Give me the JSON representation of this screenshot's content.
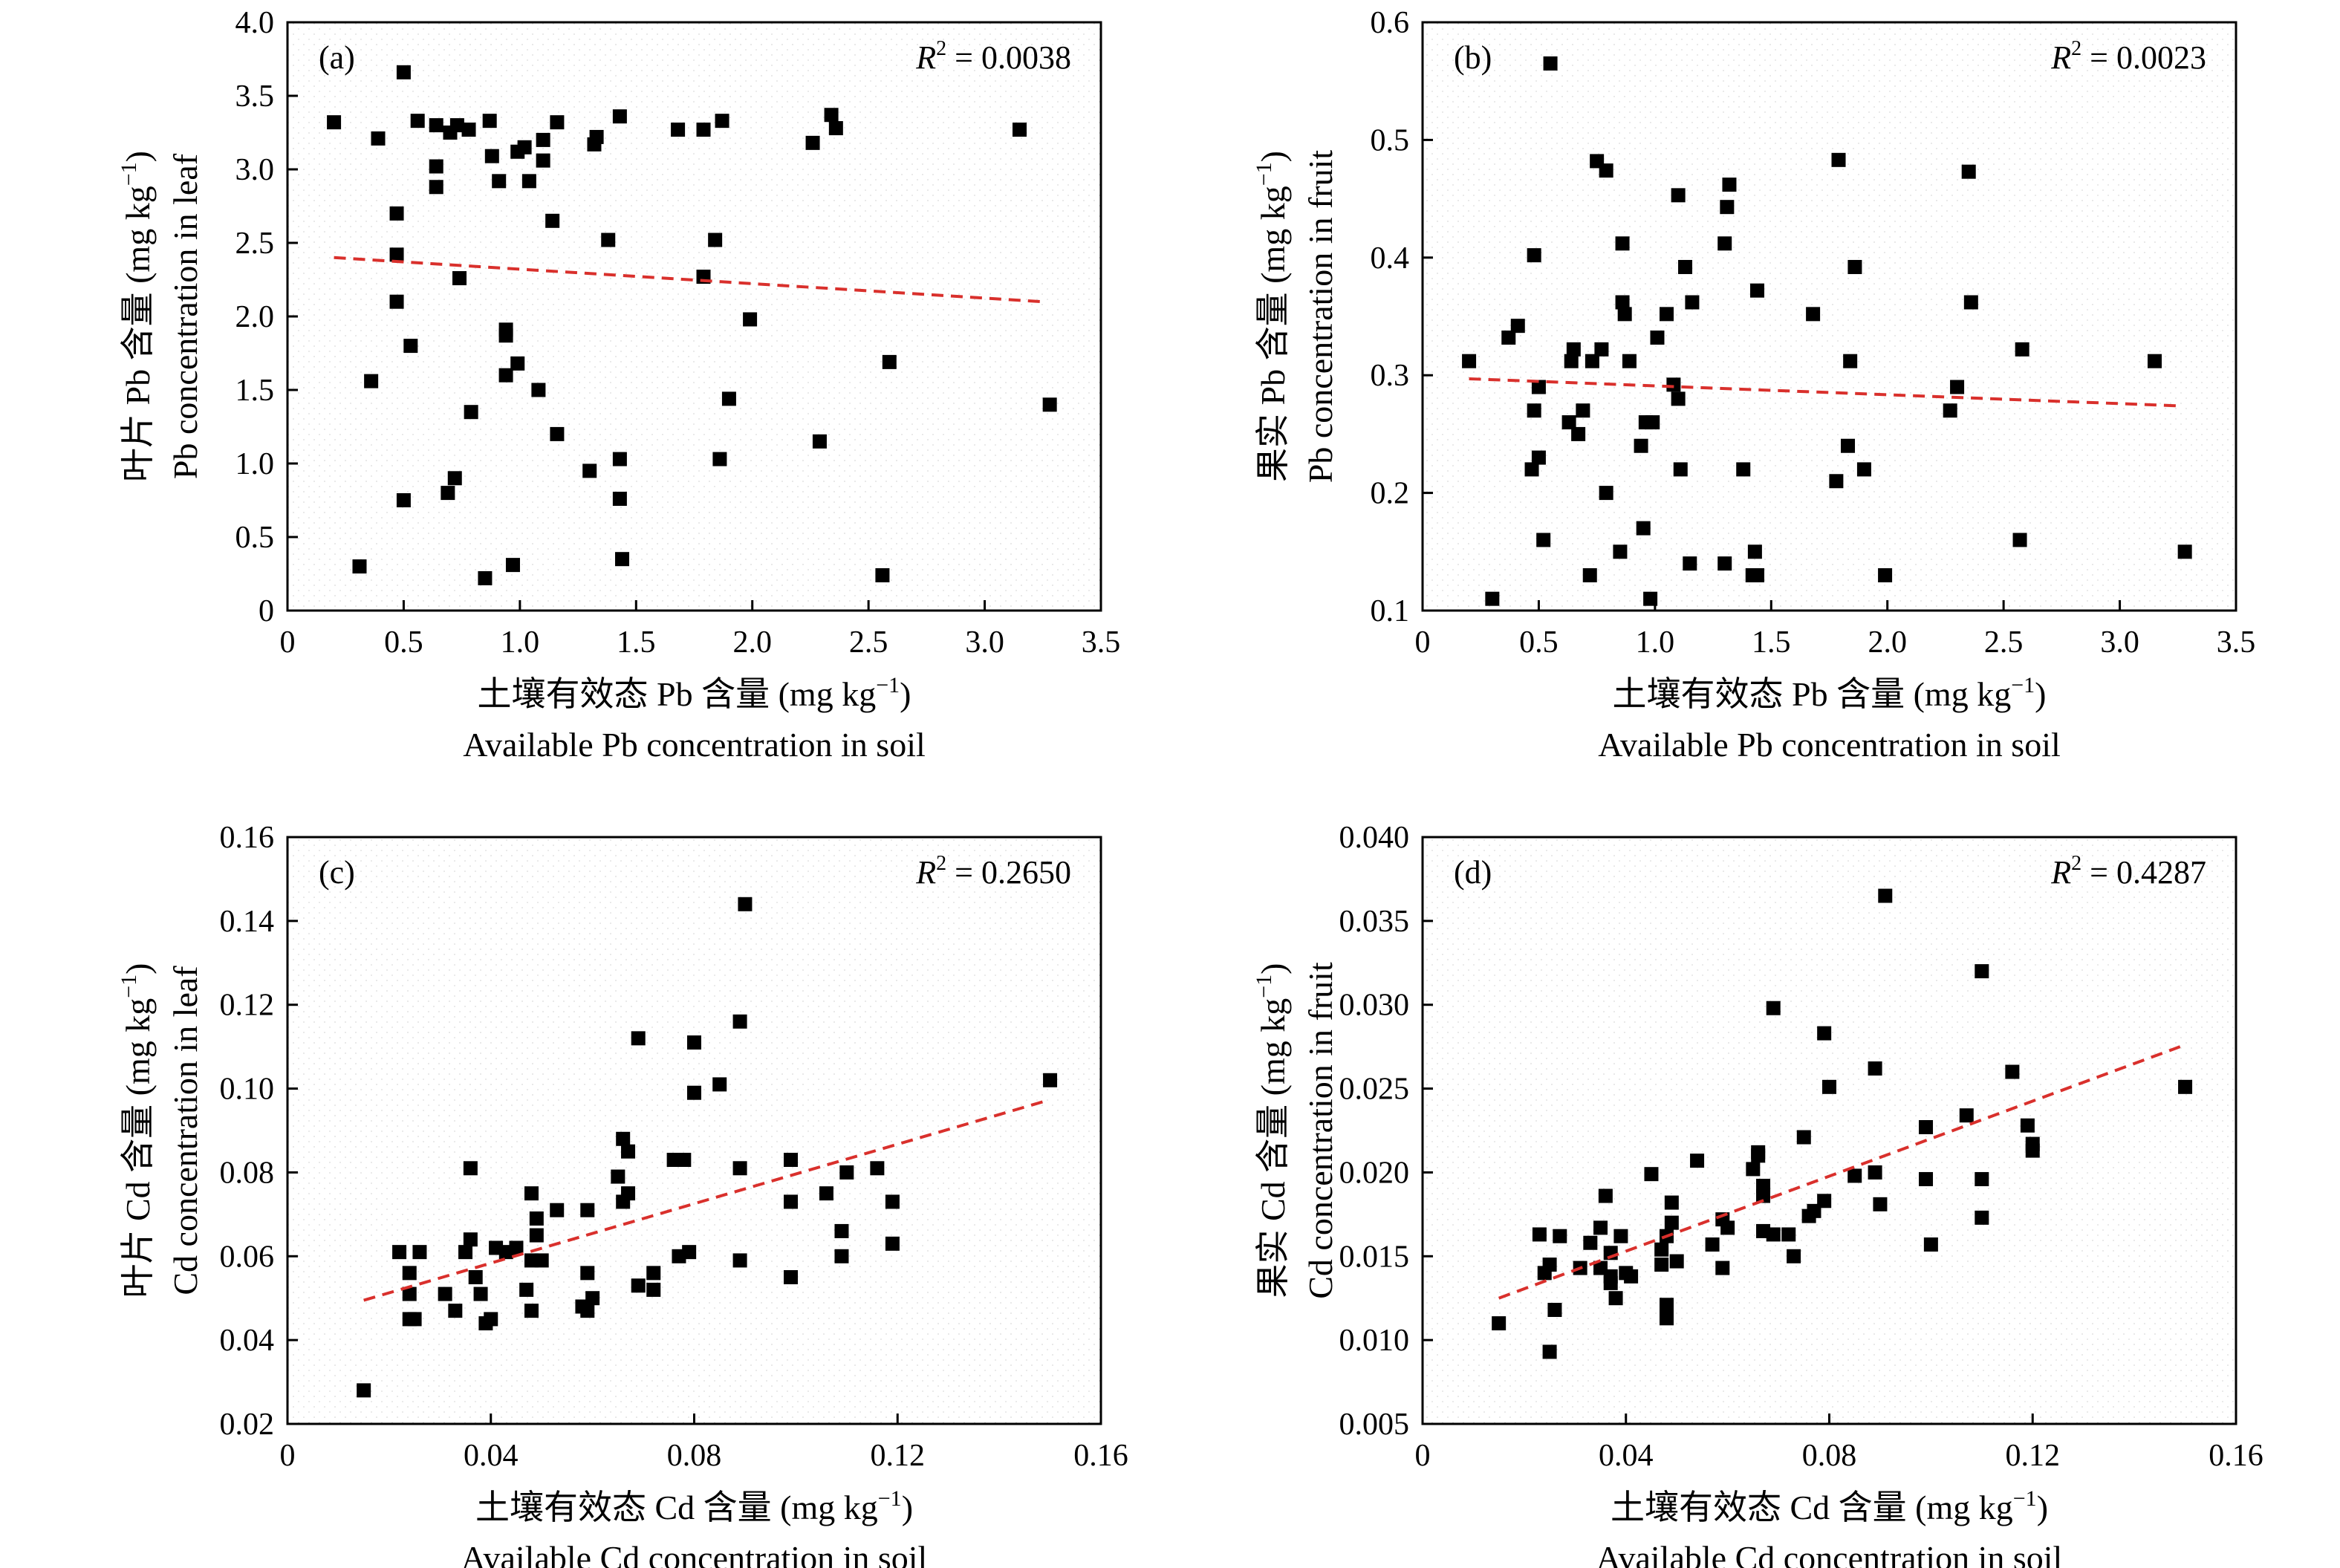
{
  "chart_data": [
    {
      "type": "scatter",
      "panel_label": "(a)",
      "r2_label": "R",
      "r2_sup": "2",
      "r2_value": " = 0.0038",
      "xlabel": "土壤有效态 Pb 含量 (mg kg",
      "xlabel_sup": "−1",
      "xlabel_close": ")",
      "xlabel_en": "Available Pb concentration in soil",
      "ylabel": "叶片 Pb 含量 (mg kg",
      "ylabel_sup": "−1",
      "ylabel_close": ")",
      "ylabel_en": "Pb concentration in leaf",
      "xlim": [
        0,
        3.5
      ],
      "ylim": [
        0,
        4.0
      ],
      "xticks": [
        "0",
        "0.5",
        "1.0",
        "1.5",
        "2.0",
        "2.5",
        "3.0",
        "3.5"
      ],
      "yticks": [
        "0",
        "0.5",
        "1.0",
        "1.5",
        "2.0",
        "2.5",
        "3.0",
        "3.5",
        "4.0"
      ],
      "fit_line": {
        "x": [
          0.2,
          3.25
        ],
        "y": [
          2.4,
          2.1
        ]
      },
      "points": [
        [
          0.2,
          3.32
        ],
        [
          0.39,
          3.21
        ],
        [
          0.5,
          3.66
        ],
        [
          0.56,
          3.33
        ],
        [
          0.64,
          3.3
        ],
        [
          0.7,
          3.25
        ],
        [
          0.73,
          3.3
        ],
        [
          0.78,
          3.27
        ],
        [
          0.87,
          3.33
        ],
        [
          1.02,
          3.15
        ],
        [
          1.1,
          3.2
        ],
        [
          1.16,
          3.32
        ],
        [
          1.33,
          3.22
        ],
        [
          1.43,
          3.36
        ],
        [
          1.68,
          3.27
        ],
        [
          1.79,
          3.27
        ],
        [
          1.87,
          3.33
        ],
        [
          2.26,
          3.18
        ],
        [
          2.34,
          3.37
        ],
        [
          2.36,
          3.28
        ],
        [
          3.15,
          3.27
        ],
        [
          1.1,
          3.06
        ],
        [
          1.32,
          3.17
        ],
        [
          0.88,
          3.09
        ],
        [
          0.99,
          3.12
        ],
        [
          0.64,
          3.02
        ],
        [
          0.64,
          2.88
        ],
        [
          0.91,
          2.92
        ],
        [
          1.04,
          2.92
        ],
        [
          0.47,
          2.7
        ],
        [
          1.14,
          2.65
        ],
        [
          1.38,
          2.52
        ],
        [
          1.84,
          2.52
        ],
        [
          0.47,
          2.42
        ],
        [
          0.74,
          2.26
        ],
        [
          1.79,
          2.27
        ],
        [
          0.47,
          2.1
        ],
        [
          1.99,
          1.98
        ],
        [
          0.94,
          1.91
        ],
        [
          0.94,
          1.87
        ],
        [
          0.53,
          1.8
        ],
        [
          0.99,
          1.68
        ],
        [
          0.94,
          1.6
        ],
        [
          2.59,
          1.69
        ],
        [
          0.36,
          1.56
        ],
        [
          1.08,
          1.5
        ],
        [
          1.9,
          1.44
        ],
        [
          3.28,
          1.4
        ],
        [
          0.79,
          1.35
        ],
        [
          1.16,
          1.2
        ],
        [
          2.29,
          1.15
        ],
        [
          1.43,
          1.03
        ],
        [
          1.86,
          1.03
        ],
        [
          1.3,
          0.95
        ],
        [
          0.72,
          0.9
        ],
        [
          0.69,
          0.8
        ],
        [
          1.43,
          0.76
        ],
        [
          0.5,
          0.75
        ],
        [
          1.44,
          0.35
        ],
        [
          0.31,
          0.3
        ],
        [
          0.97,
          0.31
        ],
        [
          0.85,
          0.22
        ],
        [
          2.56,
          0.24
        ]
      ]
    },
    {
      "type": "scatter",
      "panel_label": "(b)",
      "r2_label": "R",
      "r2_sup": "2",
      "r2_value": " = 0.0023",
      "xlabel": "土壤有效态 Pb 含量 (mg kg",
      "xlabel_sup": "−1",
      "xlabel_close": ")",
      "xlabel_en": "Available Pb concentration in soil",
      "ylabel": "果实 Pb 含量 (mg kg",
      "ylabel_sup": "−1",
      "ylabel_close": ")",
      "ylabel_en": "Pb concentration in fruit",
      "xlim": [
        0,
        3.5
      ],
      "ylim": [
        0.1,
        0.6
      ],
      "xticks": [
        "0",
        "0.5",
        "1.0",
        "1.5",
        "2.0",
        "2.5",
        "3.0",
        "3.5"
      ],
      "yticks": [
        "0.1",
        "0.2",
        "0.3",
        "0.4",
        "0.5",
        "0.6"
      ],
      "fit_line": {
        "x": [
          0.2,
          3.25
        ],
        "y": [
          0.297,
          0.274
        ]
      },
      "points": [
        [
          0.55,
          0.565
        ],
        [
          0.75,
          0.482
        ],
        [
          0.79,
          0.474
        ],
        [
          1.79,
          0.483
        ],
        [
          2.35,
          0.473
        ],
        [
          1.32,
          0.462
        ],
        [
          1.1,
          0.453
        ],
        [
          1.31,
          0.443
        ],
        [
          0.48,
          0.402
        ],
        [
          0.86,
          0.412
        ],
        [
          1.3,
          0.412
        ],
        [
          1.13,
          0.392
        ],
        [
          1.86,
          0.392
        ],
        [
          1.44,
          0.372
        ],
        [
          0.86,
          0.362
        ],
        [
          1.16,
          0.362
        ],
        [
          2.36,
          0.362
        ],
        [
          0.87,
          0.352
        ],
        [
          1.05,
          0.352
        ],
        [
          1.68,
          0.352
        ],
        [
          0.41,
          0.342
        ],
        [
          0.37,
          0.332
        ],
        [
          1.01,
          0.332
        ],
        [
          0.65,
          0.322
        ],
        [
          0.77,
          0.322
        ],
        [
          2.58,
          0.322
        ],
        [
          0.2,
          0.312
        ],
        [
          0.64,
          0.312
        ],
        [
          0.73,
          0.312
        ],
        [
          0.89,
          0.312
        ],
        [
          1.84,
          0.312
        ],
        [
          3.15,
          0.312
        ],
        [
          1.08,
          0.292
        ],
        [
          0.5,
          0.29
        ],
        [
          1.1,
          0.28
        ],
        [
          2.3,
          0.29
        ],
        [
          2.27,
          0.27
        ],
        [
          0.48,
          0.27
        ],
        [
          0.69,
          0.27
        ],
        [
          0.63,
          0.26
        ],
        [
          0.96,
          0.26
        ],
        [
          0.99,
          0.26
        ],
        [
          0.67,
          0.25
        ],
        [
          0.94,
          0.24
        ],
        [
          1.83,
          0.24
        ],
        [
          0.5,
          0.23
        ],
        [
          0.47,
          0.22
        ],
        [
          1.11,
          0.22
        ],
        [
          1.38,
          0.22
        ],
        [
          1.9,
          0.22
        ],
        [
          1.78,
          0.21
        ],
        [
          0.79,
          0.2
        ],
        [
          0.95,
          0.17
        ],
        [
          0.52,
          0.16
        ],
        [
          2.57,
          0.16
        ],
        [
          0.85,
          0.15
        ],
        [
          1.43,
          0.15
        ],
        [
          3.28,
          0.15
        ],
        [
          1.15,
          0.14
        ],
        [
          1.3,
          0.14
        ],
        [
          0.72,
          0.13
        ],
        [
          1.42,
          0.13
        ],
        [
          1.44,
          0.13
        ],
        [
          1.99,
          0.13
        ],
        [
          0.3,
          0.11
        ],
        [
          0.98,
          0.11
        ]
      ]
    },
    {
      "type": "scatter",
      "panel_label": "(c)",
      "r2_label": "R",
      "r2_sup": "2",
      "r2_value": " = 0.2650",
      "xlabel": "土壤有效态 Cd 含量 (mg kg",
      "xlabel_sup": "−1",
      "xlabel_close": ")",
      "xlabel_en": "Available Cd concentration in soil",
      "ylabel": "叶片 Cd 含量 (mg kg",
      "ylabel_sup": "−1",
      "ylabel_close": ")",
      "ylabel_en": "Cd concentration in leaf",
      "xlim": [
        0,
        0.16
      ],
      "ylim": [
        0.02,
        0.16
      ],
      "xticks": [
        "0",
        "0.04",
        "0.08",
        "0.12",
        "0.16"
      ],
      "yticks": [
        "0.02",
        "0.04",
        "0.06",
        "0.08",
        "0.10",
        "0.12",
        "0.14",
        "0.16"
      ],
      "fit_line": {
        "x": [
          0.015,
          0.149
        ],
        "y": [
          0.0495,
          0.097
        ]
      },
      "points": [
        [
          0.015,
          0.028
        ],
        [
          0.022,
          0.061
        ],
        [
          0.024,
          0.056
        ],
        [
          0.024,
          0.051
        ],
        [
          0.024,
          0.045
        ],
        [
          0.025,
          0.045
        ],
        [
          0.026,
          0.061
        ],
        [
          0.031,
          0.051
        ],
        [
          0.033,
          0.047
        ],
        [
          0.035,
          0.061
        ],
        [
          0.036,
          0.064
        ],
        [
          0.036,
          0.081
        ],
        [
          0.037,
          0.055
        ],
        [
          0.038,
          0.051
        ],
        [
          0.039,
          0.044
        ],
        [
          0.04,
          0.045
        ],
        [
          0.041,
          0.062
        ],
        [
          0.043,
          0.061
        ],
        [
          0.045,
          0.062
        ],
        [
          0.047,
          0.052
        ],
        [
          0.048,
          0.075
        ],
        [
          0.048,
          0.059
        ],
        [
          0.048,
          0.047
        ],
        [
          0.049,
          0.069
        ],
        [
          0.049,
          0.065
        ],
        [
          0.05,
          0.059
        ],
        [
          0.053,
          0.071
        ],
        [
          0.058,
          0.048
        ],
        [
          0.059,
          0.047
        ],
        [
          0.059,
          0.071
        ],
        [
          0.059,
          0.056
        ],
        [
          0.06,
          0.05
        ],
        [
          0.065,
          0.079
        ],
        [
          0.066,
          0.088
        ],
        [
          0.066,
          0.073
        ],
        [
          0.067,
          0.085
        ],
        [
          0.067,
          0.075
        ],
        [
          0.069,
          0.053
        ],
        [
          0.069,
          0.112
        ],
        [
          0.072,
          0.056
        ],
        [
          0.072,
          0.052
        ],
        [
          0.076,
          0.083
        ],
        [
          0.077,
          0.06
        ],
        [
          0.078,
          0.083
        ],
        [
          0.079,
          0.061
        ],
        [
          0.08,
          0.099
        ],
        [
          0.08,
          0.111
        ],
        [
          0.085,
          0.101
        ],
        [
          0.089,
          0.116
        ],
        [
          0.089,
          0.081
        ],
        [
          0.089,
          0.059
        ],
        [
          0.09,
          0.144
        ],
        [
          0.099,
          0.083
        ],
        [
          0.099,
          0.073
        ],
        [
          0.099,
          0.055
        ],
        [
          0.106,
          0.075
        ],
        [
          0.109,
          0.066
        ],
        [
          0.11,
          0.08
        ],
        [
          0.109,
          0.06
        ],
        [
          0.116,
          0.081
        ],
        [
          0.119,
          0.073
        ],
        [
          0.119,
          0.063
        ],
        [
          0.15,
          0.102
        ]
      ]
    },
    {
      "type": "scatter",
      "panel_label": "(d)",
      "r2_label": "R",
      "r2_sup": "2",
      "r2_value": " = 0.4287",
      "xlabel": "土壤有效态 Cd 含量 (mg kg",
      "xlabel_sup": "−1",
      "xlabel_close": ")",
      "xlabel_en": "Available Cd concentration in soil",
      "ylabel": "果实 Cd 含量 (mg kg",
      "ylabel_sup": "−1",
      "ylabel_close": ")",
      "ylabel_en": "Cd concentration in fruit",
      "xlim": [
        0,
        0.16
      ],
      "ylim": [
        0.005,
        0.04
      ],
      "xticks": [
        "0",
        "0.04",
        "0.08",
        "0.12",
        "0.16"
      ],
      "yticks": [
        "0.005",
        "0.010",
        "0.015",
        "0.020",
        "0.025",
        "0.030",
        "0.035",
        "0.040"
      ],
      "fit_line": {
        "x": [
          0.015,
          0.149
        ],
        "y": [
          0.0125,
          0.0275
        ]
      },
      "points": [
        [
          0.015,
          0.011
        ],
        [
          0.023,
          0.0163
        ],
        [
          0.024,
          0.014
        ],
        [
          0.025,
          0.0145
        ],
        [
          0.025,
          0.0093
        ],
        [
          0.026,
          0.0118
        ],
        [
          0.027,
          0.0162
        ],
        [
          0.031,
          0.0143
        ],
        [
          0.033,
          0.0158
        ],
        [
          0.035,
          0.0167
        ],
        [
          0.035,
          0.0143
        ],
        [
          0.036,
          0.0186
        ],
        [
          0.037,
          0.0138
        ],
        [
          0.037,
          0.0152
        ],
        [
          0.037,
          0.0134
        ],
        [
          0.038,
          0.0125
        ],
        [
          0.039,
          0.0162
        ],
        [
          0.04,
          0.014
        ],
        [
          0.041,
          0.0138
        ],
        [
          0.045,
          0.0199
        ],
        [
          0.047,
          0.0154
        ],
        [
          0.047,
          0.0145
        ],
        [
          0.048,
          0.0121
        ],
        [
          0.048,
          0.0115
        ],
        [
          0.048,
          0.0113
        ],
        [
          0.048,
          0.0162
        ],
        [
          0.049,
          0.0182
        ],
        [
          0.049,
          0.017
        ],
        [
          0.05,
          0.0147
        ],
        [
          0.054,
          0.0207
        ],
        [
          0.057,
          0.0157
        ],
        [
          0.059,
          0.0143
        ],
        [
          0.059,
          0.0172
        ],
        [
          0.06,
          0.0167
        ],
        [
          0.065,
          0.0202
        ],
        [
          0.066,
          0.0212
        ],
        [
          0.066,
          0.021
        ],
        [
          0.067,
          0.0165
        ],
        [
          0.067,
          0.0192
        ],
        [
          0.067,
          0.0186
        ],
        [
          0.069,
          0.0298
        ],
        [
          0.069,
          0.0163
        ],
        [
          0.072,
          0.0163
        ],
        [
          0.073,
          0.015
        ],
        [
          0.075,
          0.0221
        ],
        [
          0.076,
          0.0174
        ],
        [
          0.077,
          0.0177
        ],
        [
          0.079,
          0.0183
        ],
        [
          0.079,
          0.0283
        ],
        [
          0.08,
          0.0251
        ],
        [
          0.085,
          0.0198
        ],
        [
          0.089,
          0.0262
        ],
        [
          0.089,
          0.02
        ],
        [
          0.09,
          0.0181
        ],
        [
          0.091,
          0.0365
        ],
        [
          0.099,
          0.0227
        ],
        [
          0.099,
          0.0196
        ],
        [
          0.1,
          0.0157
        ],
        [
          0.107,
          0.0234
        ],
        [
          0.11,
          0.032
        ],
        [
          0.11,
          0.0196
        ],
        [
          0.11,
          0.0173
        ],
        [
          0.116,
          0.026
        ],
        [
          0.119,
          0.0228
        ],
        [
          0.12,
          0.0213
        ],
        [
          0.12,
          0.0217
        ],
        [
          0.15,
          0.0251
        ]
      ]
    }
  ]
}
